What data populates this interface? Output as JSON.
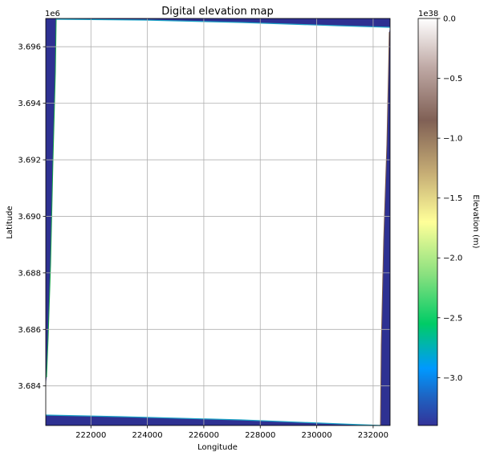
{
  "chart_data": {
    "type": "heatmap",
    "title": "Digital elevation map",
    "xlabel": "Longitude",
    "ylabel": "Latitude",
    "xlim": [
      220400,
      232600
    ],
    "ylim": [
      3682600,
      3697000
    ],
    "xticks": [
      222000,
      224000,
      226000,
      228000,
      230000,
      232000
    ],
    "xtick_labels": [
      "222000",
      "224000",
      "226000",
      "228000",
      "230000",
      "232000"
    ],
    "yticks": [
      3684000,
      3686000,
      3688000,
      3690000,
      3692000,
      3694000,
      3696000
    ],
    "ytick_labels": [
      "3.684",
      "3.686",
      "3.688",
      "3.690",
      "3.692",
      "3.694",
      "3.696"
    ],
    "y_offset_text": "1e6",
    "grid": true,
    "colormap": "terrain",
    "colorbar": {
      "label": "Elevation (m)",
      "offset_text": "1e38",
      "range": [
        -3.4,
        0.0
      ],
      "ticks": [
        0.0,
        -0.5,
        -1.0,
        -1.5,
        -2.0,
        -2.5,
        -3.0
      ],
      "tick_labels": [
        "0.0",
        "−0.5",
        "−1.0",
        "−1.5",
        "−2.0",
        "−2.5",
        "−3.0"
      ]
    },
    "data_description_values": {
      "border_value": -3.4,
      "interior_value": "no data"
    }
  },
  "colors": {
    "nodata_border": "#2e3192",
    "edge_cyan": "#1fa5c7",
    "edge_green": "#16a34a",
    "edge_brown": "#7a5a4a",
    "grid": "#b0b0b0"
  }
}
